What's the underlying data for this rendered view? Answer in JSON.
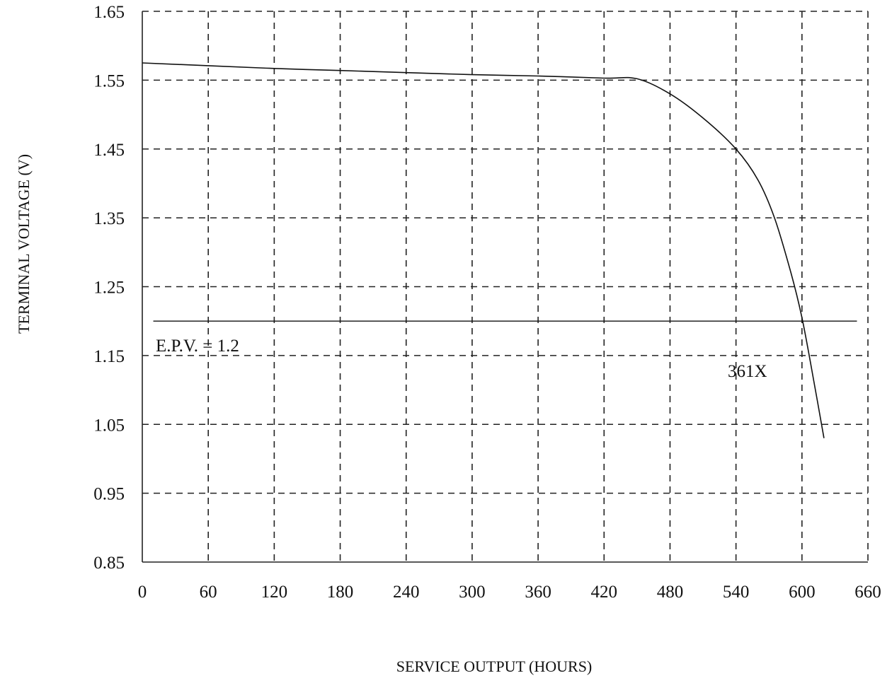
{
  "chart_data": {
    "type": "line",
    "xlabel": "SERVICE OUTPUT (HOURS)",
    "ylabel": "TERMINAL VOLTAGE (V)",
    "xlim": [
      0,
      660
    ],
    "ylim": [
      0.85,
      1.65
    ],
    "x_ticks": [
      "0",
      "60",
      "120",
      "180",
      "240",
      "300",
      "360",
      "420",
      "480",
      "540",
      "600",
      "660"
    ],
    "y_ticks": [
      "1.65",
      "1.55",
      "1.45",
      "1.35",
      "1.25",
      "1.15",
      "1.05",
      "0.95",
      "0.85"
    ],
    "grid": true,
    "series": [
      {
        "name": "361X",
        "x": [
          0,
          60,
          120,
          180,
          240,
          300,
          360,
          420,
          450,
          480,
          510,
          540,
          560,
          575,
          590,
          600,
          610,
          620
        ],
        "y": [
          1.575,
          1.571,
          1.567,
          1.564,
          1.561,
          1.558,
          1.556,
          1.553,
          1.552,
          1.53,
          1.495,
          1.45,
          1.405,
          1.35,
          1.27,
          1.205,
          1.12,
          1.03
        ]
      }
    ],
    "reference_line": {
      "label": "E.P.V. = 1.2",
      "y": 1.2,
      "x_start": 10,
      "x_end": 650
    }
  }
}
